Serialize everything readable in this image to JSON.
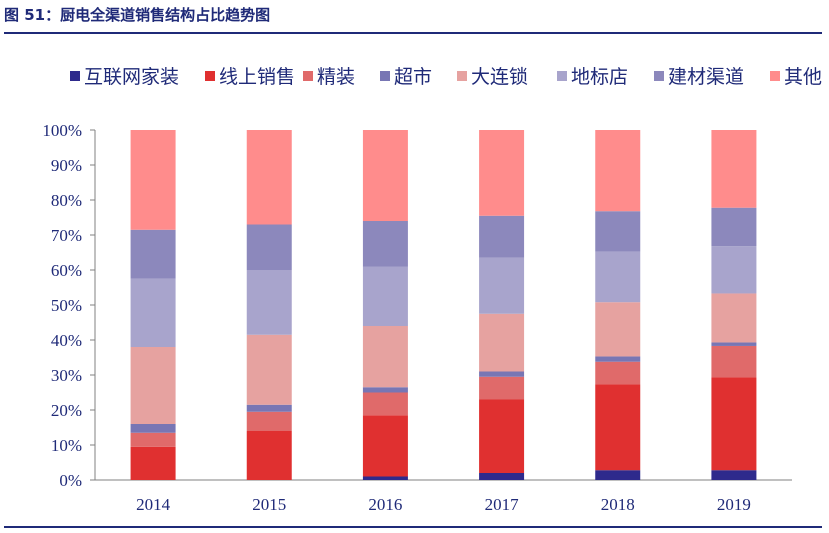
{
  "figure": {
    "title": "图 51：厨电全渠道销售结构占比趋势图"
  },
  "chart_data": {
    "type": "bar",
    "stacked": true,
    "title": "图 51：厨电全渠道销售结构占比趋势图",
    "xlabel": "",
    "ylabel": "",
    "ylim": [
      0,
      100
    ],
    "yticks": [
      "0%",
      "10%",
      "20%",
      "30%",
      "40%",
      "50%",
      "60%",
      "70%",
      "80%",
      "90%",
      "100%"
    ],
    "categories": [
      "2014",
      "2015",
      "2016",
      "2017",
      "2018",
      "2019"
    ],
    "legend_position": "top",
    "grid": false,
    "series": [
      {
        "name": "互联网家装",
        "color": "#2e2a8c",
        "values": [
          0,
          0,
          1,
          2,
          2.8,
          2.8
        ]
      },
      {
        "name": "线上销售",
        "color": "#e03030",
        "values": [
          9.5,
          14,
          17.5,
          21,
          24.5,
          26.5
        ]
      },
      {
        "name": "精装",
        "color": "#e06a6a",
        "values": [
          4,
          5.5,
          6.5,
          6.5,
          6.5,
          9
        ]
      },
      {
        "name": "超市",
        "color": "#7876b4",
        "values": [
          2.5,
          2,
          1.5,
          1.5,
          1.5,
          1
        ]
      },
      {
        "name": "大连锁",
        "color": "#e6a2a0",
        "values": [
          22,
          20,
          17.5,
          16.5,
          15.5,
          14
        ]
      },
      {
        "name": "地标店",
        "color": "#a8a4cc",
        "values": [
          19.5,
          18.5,
          17,
          16,
          14.5,
          13.5
        ]
      },
      {
        "name": "建材渠道",
        "color": "#8c88bc",
        "values": [
          14,
          13,
          13,
          12,
          11.5,
          11
        ]
      },
      {
        "name": "其他",
        "color": "#ff8c8c",
        "values": [
          28.5,
          27,
          26,
          24.5,
          23.2,
          22.2
        ]
      }
    ]
  }
}
